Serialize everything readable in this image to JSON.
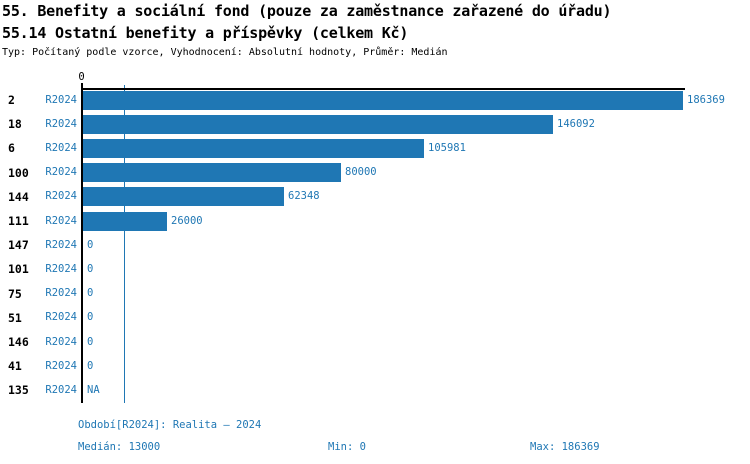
{
  "title": "55. Benefity a sociální fond (pouze za zaměstnance zařazené do úřadu)",
  "subtitle": "55.14 Ostatní benefity a příspěvky (celkem Kč)",
  "meta": "Typ: Počítaný podle vzorce, Vyhodnocení: Absolutní hodnoty, Průměr: Medián",
  "colors": {
    "bar": "#1f77b4",
    "blue_text": "#1f77b4",
    "axis": "#000000"
  },
  "chart_data": {
    "type": "bar",
    "orientation": "horizontal",
    "title": "55.14 Ostatní benefity a příspěvky (celkem Kč)",
    "categories": [
      "2",
      "18",
      "6",
      "100",
      "144",
      "111",
      "147",
      "101",
      "75",
      "51",
      "146",
      "41",
      "135"
    ],
    "series_label": "R2024",
    "values": [
      186369,
      146092,
      105981,
      80000,
      62348,
      26000,
      0,
      0,
      0,
      0,
      0,
      0,
      null
    ],
    "value_labels": [
      "186369",
      "146092",
      "105981",
      "80000",
      "62348",
      "26000",
      "0",
      "0",
      "0",
      "0",
      "0",
      "0",
      "NA"
    ],
    "xlim": [
      0,
      186369
    ],
    "x_tick_label": "0",
    "median_line_value": 13000,
    "legend_position": "none",
    "grid": false
  },
  "footer": {
    "period": "Období[R2024]: Realita – 2024",
    "median": "Medián: 13000",
    "min": "Min: 0",
    "max": "Max: 186369"
  }
}
